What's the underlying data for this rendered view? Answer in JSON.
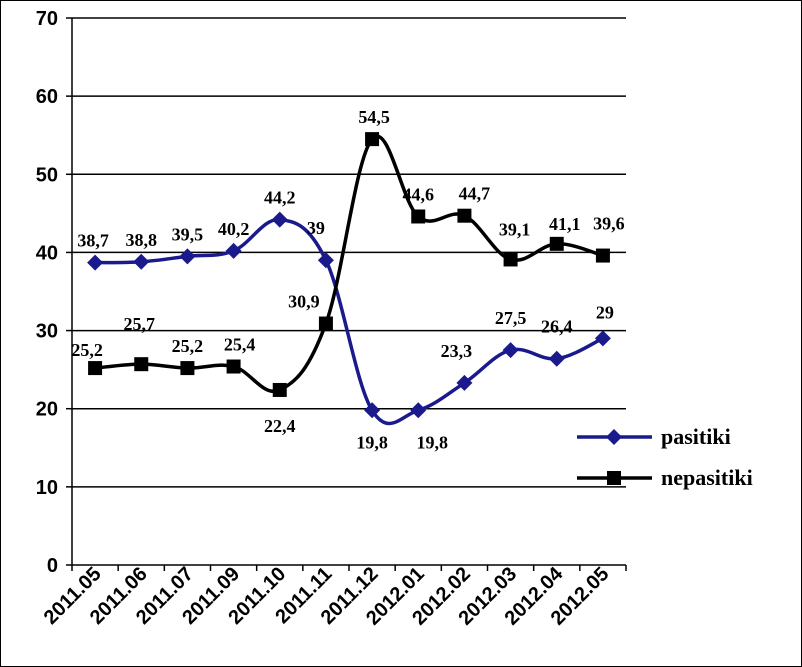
{
  "chart_data": {
    "type": "line",
    "title": "",
    "xlabel": "",
    "ylabel": "",
    "categories": [
      "2011.05",
      "2011.06",
      "2011.07",
      "2011.09",
      "2011.10",
      "2011.11",
      "2011.12",
      "2012.01",
      "2012.02",
      "2012.03",
      "2012.04",
      "2012.05"
    ],
    "ylim": [
      0,
      70
    ],
    "yticks": [
      0,
      10,
      20,
      30,
      40,
      50,
      60,
      70
    ],
    "grid": "horizontal",
    "legend": "right",
    "series": [
      {
        "name": "pasitiki",
        "color": "#1a1a8c",
        "marker": "diamond",
        "values": [
          38.7,
          38.8,
          39.5,
          40.2,
          44.2,
          39,
          19.8,
          19.8,
          23.3,
          27.5,
          26.4,
          29
        ],
        "labels": [
          "38,7",
          "38,8",
          "39,5",
          "40,2",
          "44,2",
          "39",
          "19,8",
          "19,8",
          "23,3",
          "27,5",
          "26,4",
          "29"
        ]
      },
      {
        "name": "nepasitiki",
        "color": "#000000",
        "marker": "square",
        "values": [
          25.2,
          25.7,
          25.2,
          25.4,
          22.4,
          30.9,
          54.5,
          44.6,
          44.7,
          39.1,
          41.1,
          39.6
        ],
        "labels": [
          "25,2",
          "25,7",
          "25,2",
          "25,4",
          "22,4",
          "30,9",
          "54,5",
          "44,6",
          "44,7",
          "39,1",
          "41,1",
          "39,6"
        ]
      }
    ]
  }
}
